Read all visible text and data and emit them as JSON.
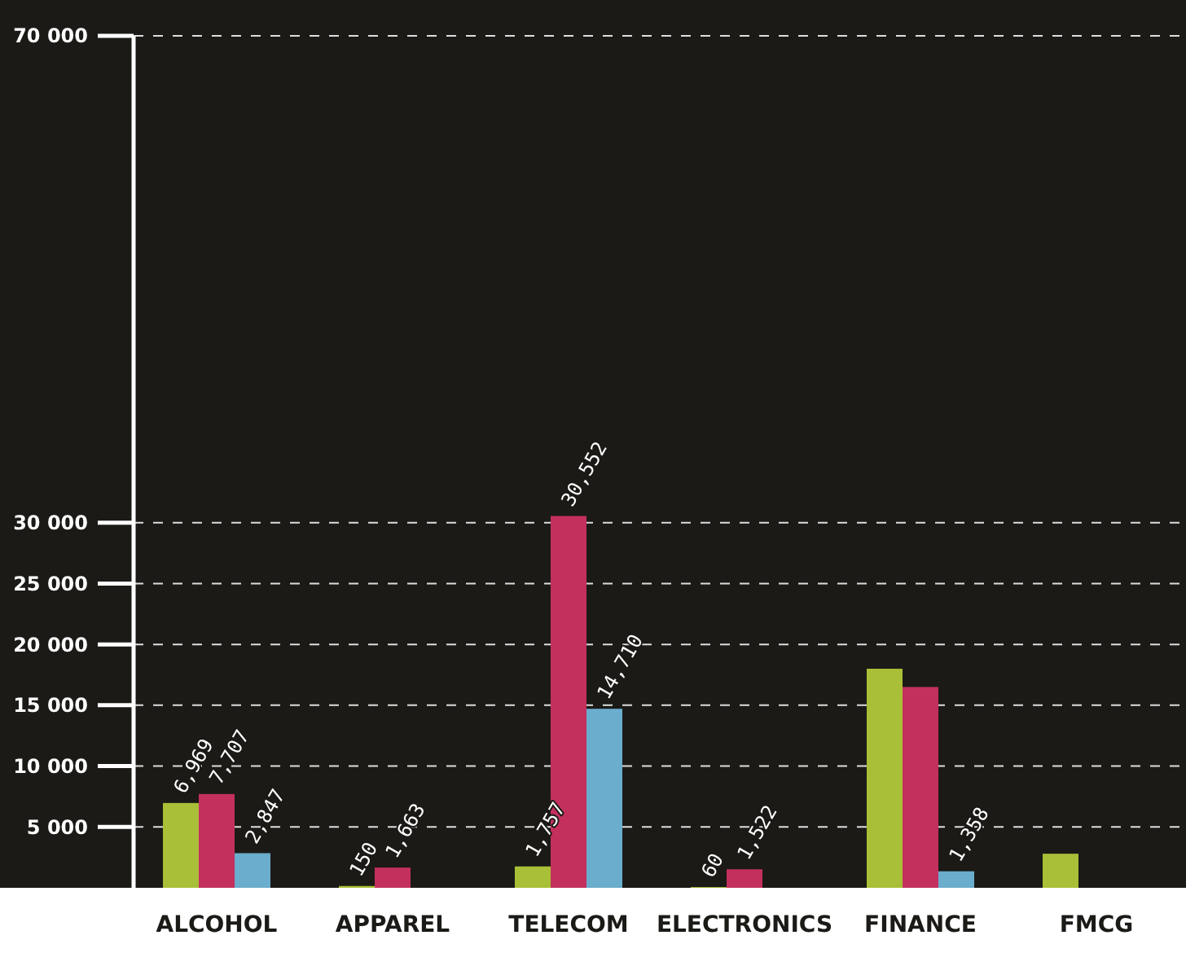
{
  "chart_data": {
    "type": "bar",
    "categories": [
      "ALCOHOL",
      "APPAREL",
      "TELECOM",
      "ELECTRONICS",
      "FINANCE",
      "FMCG"
    ],
    "series": [
      {
        "color": "#a9bf37",
        "values": [
          6969,
          150,
          1757,
          60,
          18000,
          2800
        ],
        "value_labels": [
          "6,969",
          "150",
          "1,757",
          "60",
          null,
          null
        ]
      },
      {
        "color": "#c3305e",
        "values": [
          7707,
          1663,
          30552,
          1522,
          16500,
          null
        ],
        "value_labels": [
          "7,707",
          "1,663",
          "30,552",
          "1,522",
          null,
          null
        ]
      },
      {
        "color": "#6badcc",
        "values": [
          2847,
          null,
          14710,
          null,
          1358,
          null
        ],
        "value_labels": [
          "2,847",
          null,
          "14,710",
          null,
          "1,358",
          null
        ]
      }
    ],
    "ylim": [
      0,
      70000
    ],
    "yticks": [
      {
        "value": 5000,
        "label": "5 000"
      },
      {
        "value": 10000,
        "label": "10 000"
      },
      {
        "value": 15000,
        "label": "15 000"
      },
      {
        "value": 20000,
        "label": "20 000"
      },
      {
        "value": 25000,
        "label": "25 000"
      },
      {
        "value": 30000,
        "label": "30 000"
      },
      {
        "value": 70000,
        "label": "70 000"
      }
    ],
    "grid": "y"
  }
}
